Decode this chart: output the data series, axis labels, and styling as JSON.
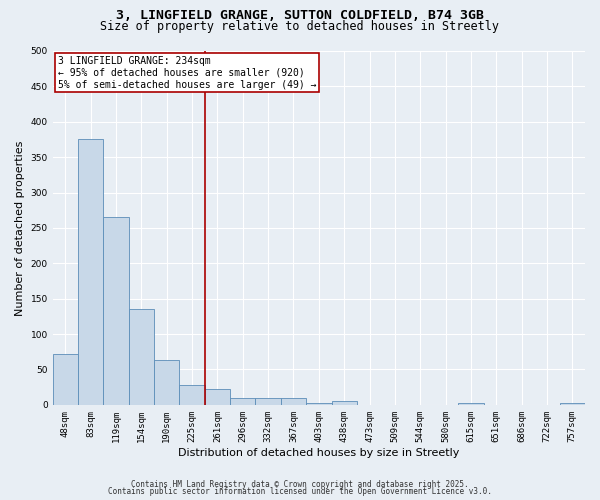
{
  "title_line1": "3, LINGFIELD GRANGE, SUTTON COLDFIELD, B74 3GB",
  "title_line2": "Size of property relative to detached houses in Streetly",
  "categories": [
    "48sqm",
    "83sqm",
    "119sqm",
    "154sqm",
    "190sqm",
    "225sqm",
    "261sqm",
    "296sqm",
    "332sqm",
    "367sqm",
    "403sqm",
    "438sqm",
    "473sqm",
    "509sqm",
    "544sqm",
    "580sqm",
    "615sqm",
    "651sqm",
    "686sqm",
    "722sqm",
    "757sqm"
  ],
  "values": [
    72,
    375,
    265,
    135,
    63,
    28,
    22,
    10,
    10,
    10,
    3,
    5,
    0,
    0,
    0,
    0,
    3,
    0,
    0,
    0,
    2
  ],
  "bar_color": "#c8d8e8",
  "bar_edge_color": "#5b8db8",
  "background_color": "#e8eef4",
  "ylabel": "Number of detached properties",
  "xlabel": "Distribution of detached houses by size in Streetly",
  "ylim": [
    0,
    500
  ],
  "yticks": [
    0,
    50,
    100,
    150,
    200,
    250,
    300,
    350,
    400,
    450,
    500
  ],
  "vline_x": 5.5,
  "vline_color": "#aa0000",
  "annotation_text": "3 LINGFIELD GRANGE: 234sqm\n← 95% of detached houses are smaller (920)\n5% of semi-detached houses are larger (49) →",
  "annotation_box_facecolor": "#ffffff",
  "annotation_box_edgecolor": "#aa0000",
  "footer_line1": "Contains HM Land Registry data © Crown copyright and database right 2025.",
  "footer_line2": "Contains public sector information licensed under the Open Government Licence v3.0.",
  "grid_color": "#ffffff",
  "title1_fontsize": 9.5,
  "title2_fontsize": 8.5,
  "ylabel_fontsize": 8,
  "xlabel_fontsize": 8,
  "tick_fontsize": 6.5,
  "annotation_fontsize": 7,
  "footer_fontsize": 5.5
}
